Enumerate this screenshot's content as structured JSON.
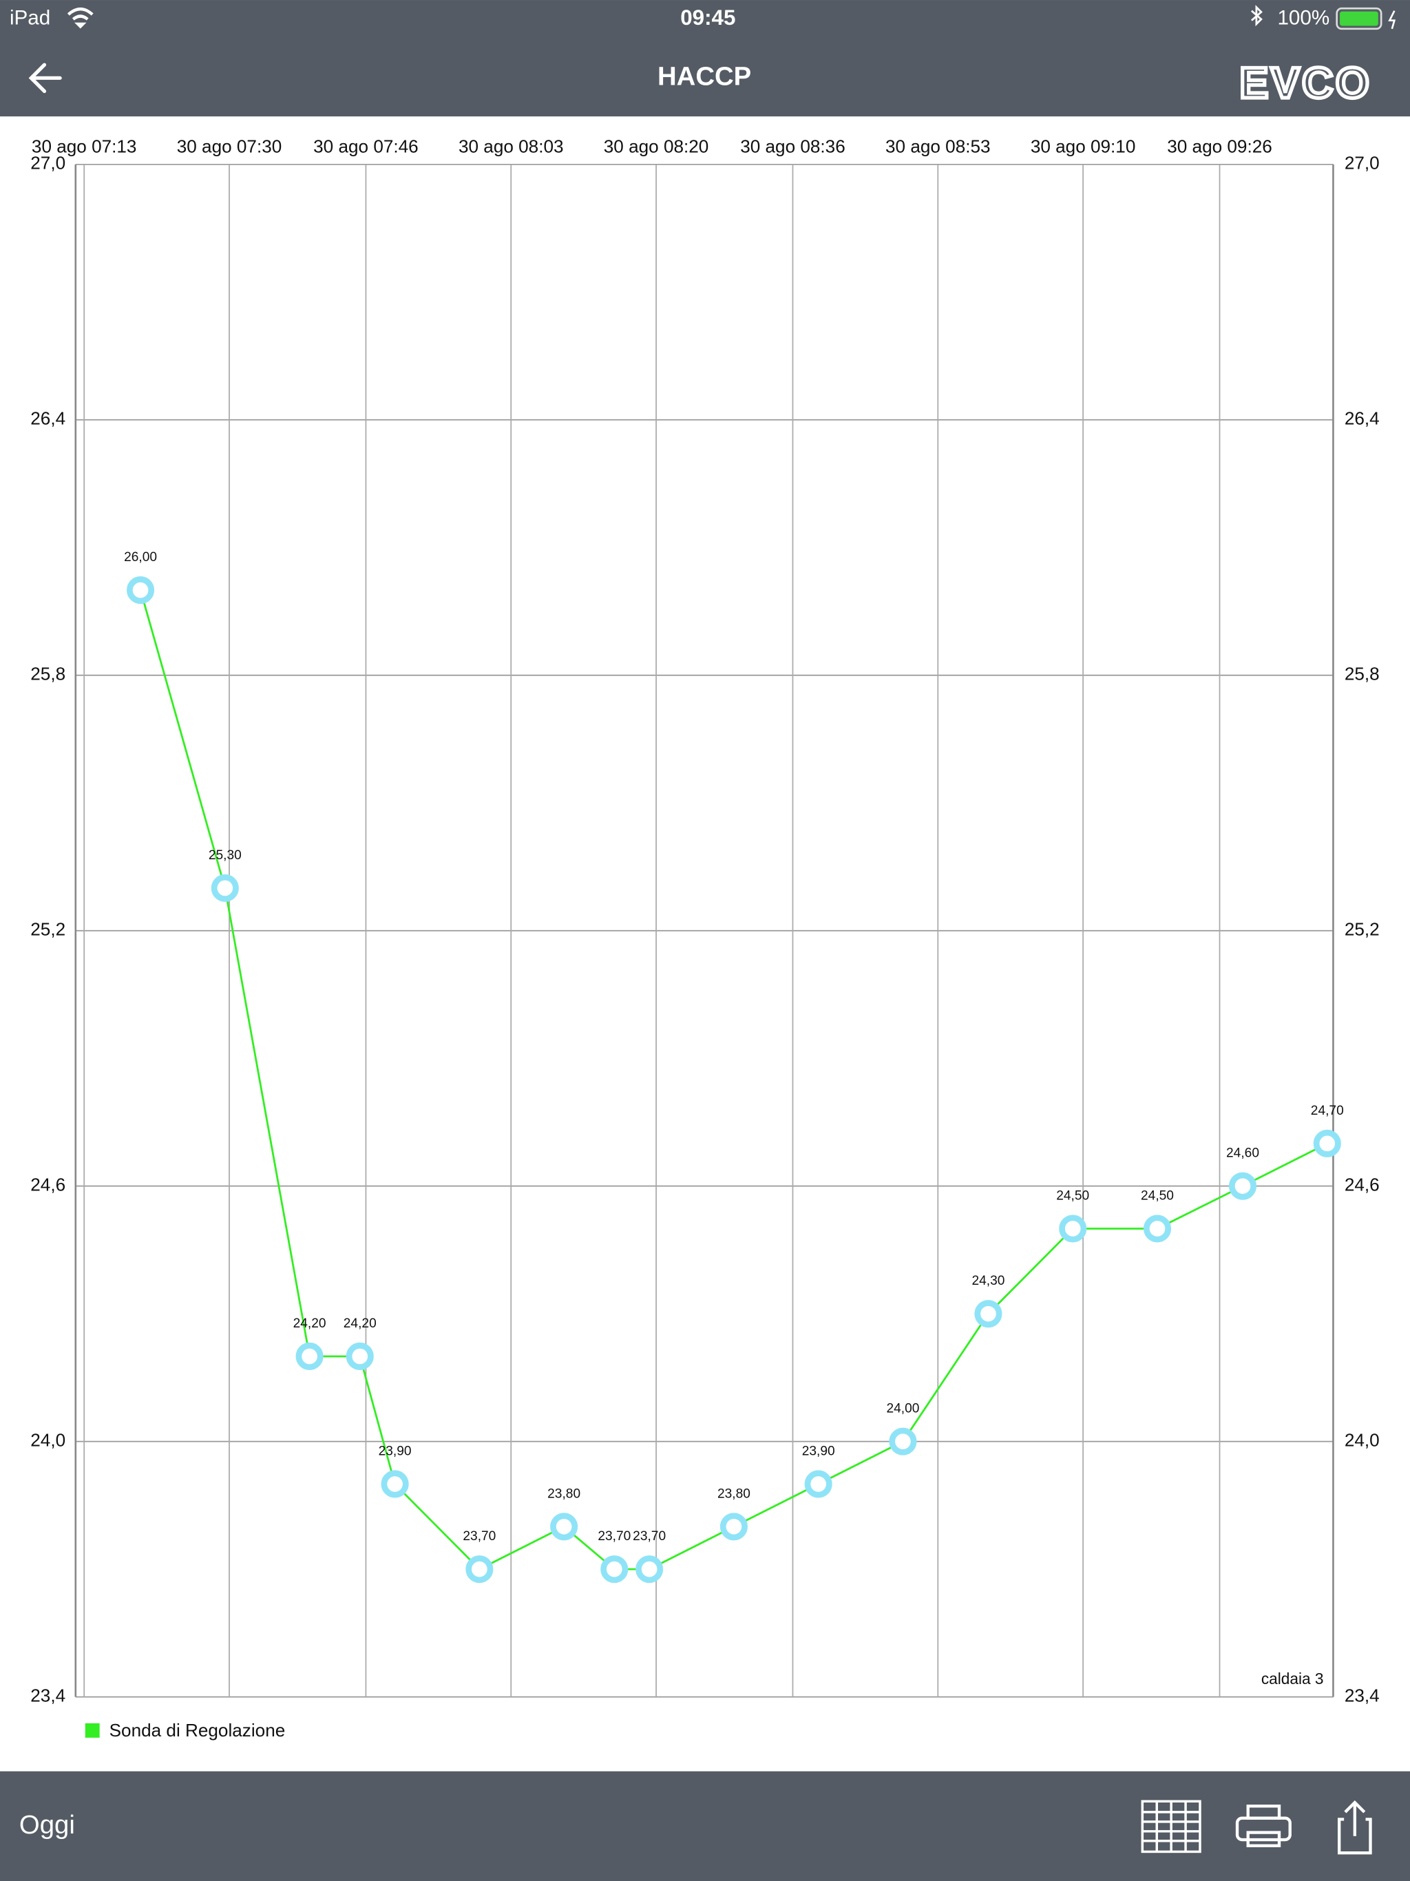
{
  "status_bar": {
    "device": "iPad",
    "time": "09:45",
    "battery": "100%"
  },
  "nav_bar": {
    "title": "HACCP",
    "logo": "EVCO"
  },
  "chart_data": {
    "type": "line",
    "x": [
      439.6,
      449.5,
      459.4,
      465.3,
      469.4,
      479.3,
      489.2,
      495.1,
      499.2,
      509.1,
      519.0,
      528.9,
      538.9,
      548.8,
      558.7,
      568.7,
      578.6
    ],
    "values": [
      26.0,
      25.3,
      24.2,
      24.2,
      23.9,
      23.7,
      23.8,
      23.7,
      23.7,
      23.8,
      23.9,
      24.0,
      24.3,
      24.5,
      24.5,
      24.6,
      24.7
    ],
    "value_labels": [
      "26,00",
      "25,30",
      "24,20",
      "24,20",
      "23,90",
      "23,70",
      "23,80",
      "23,70",
      "23,70",
      "23,80",
      "23,90",
      "24,00",
      "24,30",
      "24,50",
      "24,50",
      "24,60",
      "24,70"
    ],
    "series_name": "Sonda di Regolazione",
    "color": "#33ee22",
    "marker_color": "#8fe3f7",
    "xlim": [
      432,
      579.3
    ],
    "xticks": [
      {
        "value": 433,
        "label": "30 ago 07:13"
      },
      {
        "value": 450,
        "label": "30 ago 07:30"
      },
      {
        "value": 466,
        "label": "30 ago 07:46"
      },
      {
        "value": 483,
        "label": "30 ago 08:03"
      },
      {
        "value": 500,
        "label": "30 ago 08:20"
      },
      {
        "value": 516,
        "label": "30 ago 08:36"
      },
      {
        "value": 533,
        "label": "30 ago 08:53"
      },
      {
        "value": 550,
        "label": "30 ago 09:10"
      },
      {
        "value": 566,
        "label": "30 ago 09:26"
      }
    ],
    "ylim": [
      23.4,
      27.0
    ],
    "yticks": [
      {
        "value": 23.4,
        "label": "23,4"
      },
      {
        "value": 24.0,
        "label": "24,0"
      },
      {
        "value": 24.6,
        "label": "24,6"
      },
      {
        "value": 25.2,
        "label": "25,2"
      },
      {
        "value": 25.8,
        "label": "25,8"
      },
      {
        "value": 26.4,
        "label": "26,4"
      },
      {
        "value": 27.0,
        "label": "27,0"
      }
    ],
    "annotation": "caldaia 3",
    "grid": true
  },
  "toolbar": {
    "left": "Oggi"
  }
}
